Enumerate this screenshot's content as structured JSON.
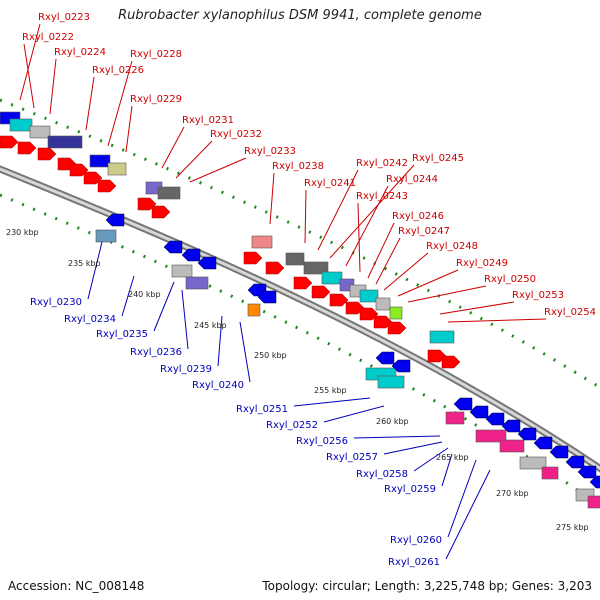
{
  "title": "Rubrobacter xylanophilus DSM 9941, complete genome",
  "accession": "Accession: NC_008148",
  "summary": "Topology: circular; Length: 3,225,748 bp; Genes: 3,203",
  "colors": {
    "forward_label": "#cc0000",
    "reverse_label": "#0000bb",
    "backbone": "#999999",
    "ticks": "#228822",
    "gene_red": "#ff0000",
    "gene_blue": "#0000ee",
    "gene_cyan": "#00cccc",
    "gene_navy": "#333399",
    "gene_grey": "#bbbbbb",
    "gene_darkgrey": "#666666",
    "gene_pink": "#ee2288",
    "gene_orange": "#ff8800",
    "gene_lime": "#88ee22",
    "gene_salmon": "#ee8888",
    "gene_olive": "#cccc88",
    "gene_purple": "#7766cc",
    "gene_steel": "#6699bb"
  },
  "scale_labels": [
    "230 kbp",
    "235 kbp",
    "240 kbp",
    "245 kbp",
    "250 kbp",
    "255 kbp",
    "260 kbp",
    "265 kbp",
    "270 kbp",
    "275 kbp"
  ],
  "forward_genes": [
    "Rxyl_0223",
    "Rxyl_0222",
    "Rxyl_0224",
    "Rxyl_0226",
    "Rxyl_0228",
    "Rxyl_0229",
    "Rxyl_0231",
    "Rxyl_0232",
    "Rxyl_0233",
    "Rxyl_0238",
    "Rxyl_0241",
    "Rxyl_0242",
    "Rxyl_0245",
    "Rxyl_0244",
    "Rxyl_0243",
    "Rxyl_0246",
    "Rxyl_0247",
    "Rxyl_0248",
    "Rxyl_0249",
    "Rxyl_0250",
    "Rxyl_0253",
    "Rxyl_0254"
  ],
  "reverse_genes": [
    "Rxyl_0230",
    "Rxyl_0234",
    "Rxyl_0235",
    "Rxyl_0236",
    "Rxyl_0239",
    "Rxyl_0240",
    "Rxyl_0251",
    "Rxyl_0252",
    "Rxyl_0256",
    "Rxyl_0257",
    "Rxyl_0258",
    "Rxyl_0259",
    "Rxyl_0260",
    "Rxyl_0261"
  ]
}
